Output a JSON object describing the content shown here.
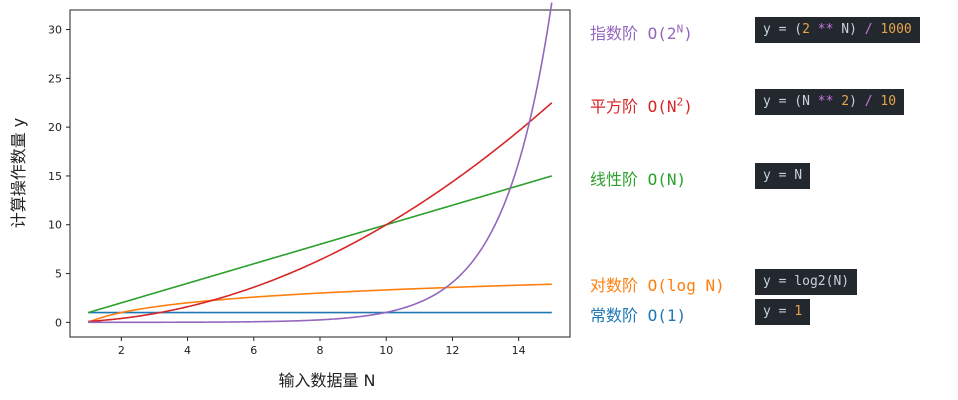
{
  "chart_data": {
    "type": "line",
    "xlabel": "输入数据量 N",
    "ylabel": "计算操作数量 y",
    "xlim": [
      0.45,
      15.55
    ],
    "ylim": [
      -1.5,
      32
    ],
    "xticks": [
      "2",
      "4",
      "6",
      "8",
      "10",
      "12",
      "14"
    ],
    "yticks": [
      "0",
      "5",
      "10",
      "15",
      "20",
      "25",
      "30"
    ],
    "x_range": [
      1,
      15
    ],
    "series": [
      {
        "name": "常数阶 O(1)",
        "formula": "y = 1",
        "color": "#1f77b4"
      },
      {
        "name": "对数阶 O(log N)",
        "formula": "y = log2(N)",
        "color": "#ff7f0e"
      },
      {
        "name": "线性阶 O(N)",
        "formula": "y = N",
        "color": "#2ca02c"
      },
      {
        "name": "平方阶 O(N^2)",
        "formula": "y = (N ** 2) / 10",
        "color": "#d62728"
      },
      {
        "name": "指数阶 O(2^N)",
        "formula": "y = (2 ** N) / 1000",
        "color": "#9467bd"
      }
    ]
  },
  "legend": {
    "exp": {
      "cn": "指数阶",
      "big_o": "O(2",
      "sup": "N",
      "close": ")"
    },
    "quad": {
      "cn": "平方阶",
      "big_o": "O(N",
      "sup": "2",
      "close": ")"
    },
    "lin": {
      "cn": "线性阶",
      "big_o": "O(N)"
    },
    "log": {
      "cn": "对数阶",
      "big_o": "O(log N)"
    },
    "const": {
      "cn": "常数阶",
      "big_o": "O(1)"
    }
  },
  "code": {
    "exp": {
      "p1": "y = (",
      "n1": "2",
      "op1": " ** ",
      "p2": "N) ",
      "op2": "/",
      "p3": " ",
      "n2": "1000"
    },
    "quad": {
      "p1": "y = (N ",
      "op1": "**",
      "p2": " ",
      "n1": "2",
      "p3": ") ",
      "op2": "/",
      "p4": " ",
      "n2": "10"
    },
    "lin": {
      "p1": "y = N"
    },
    "log": {
      "p1": "y = log2(N)"
    },
    "const": {
      "p1": "y = ",
      "n1": "1"
    }
  }
}
